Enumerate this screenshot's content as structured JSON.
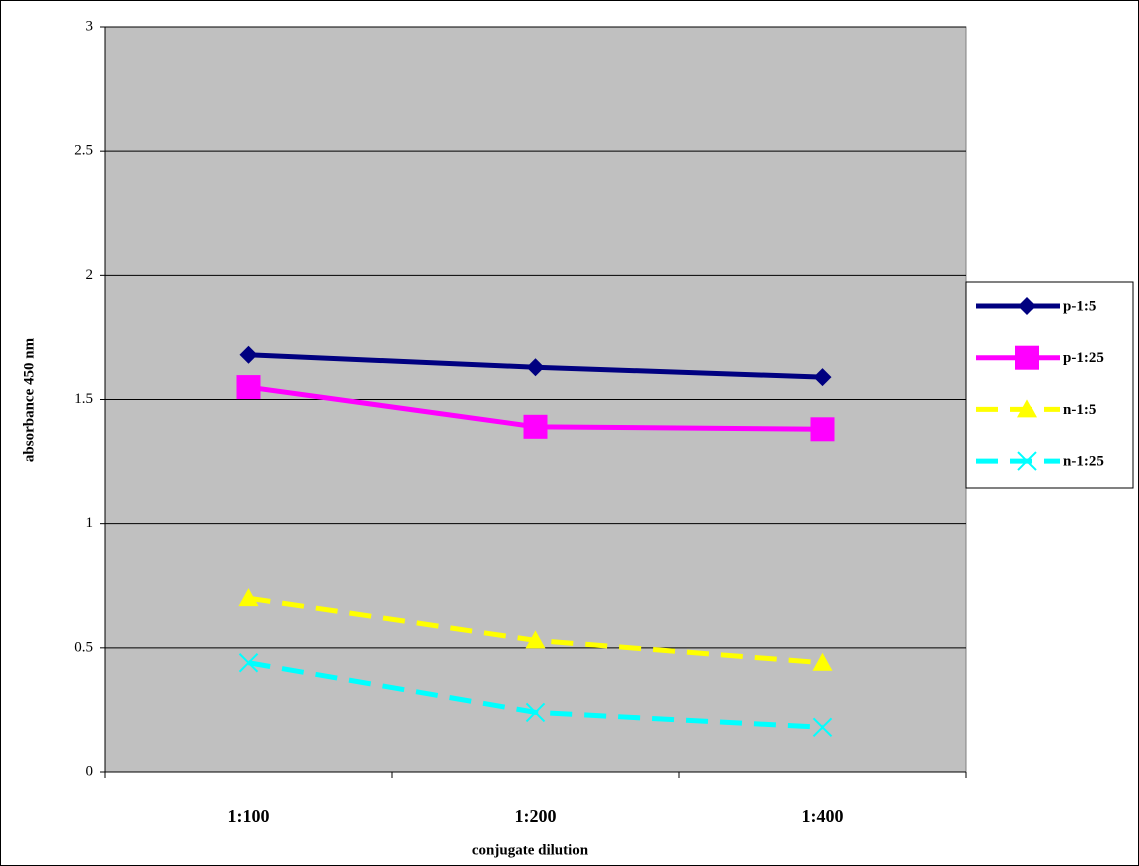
{
  "chart_data": {
    "type": "line",
    "x_label": "conjugate dilution",
    "y_label": "absorbance 450 nm",
    "categories": [
      "1:100",
      "1:200",
      "1:400"
    ],
    "ylim": [
      0,
      3
    ],
    "yticks": [
      0,
      0.5,
      1,
      1.5,
      2,
      2.5,
      3
    ],
    "grid": true,
    "legend": "right",
    "series": [
      {
        "name": "p-1:5",
        "color": "#000080",
        "marker": "diamond",
        "dashed": false,
        "values": [
          1.68,
          1.63,
          1.59
        ]
      },
      {
        "name": "p-1:25",
        "color": "#ff00ff",
        "marker": "square",
        "dashed": false,
        "values": [
          1.55,
          1.39,
          1.38
        ]
      },
      {
        "name": "n-1:5",
        "color": "#ffff00",
        "marker": "triangle",
        "dashed": true,
        "values": [
          0.7,
          0.53,
          0.44
        ]
      },
      {
        "name": "n-1:25",
        "color": "#00ffff",
        "marker": "x",
        "dashed": true,
        "values": [
          0.44,
          0.24,
          0.18
        ]
      }
    ]
  }
}
